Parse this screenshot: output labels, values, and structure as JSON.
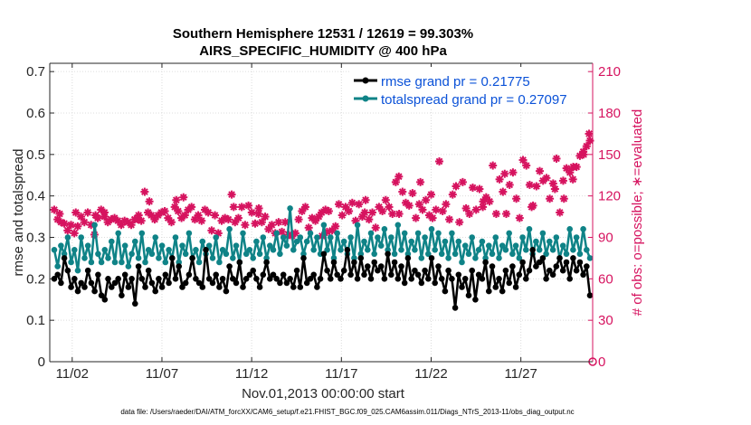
{
  "chart_data": {
    "type": "line",
    "title": "Southern Hemisphere 12531 / 12619 = 99.303%",
    "subtitle": "AIRS_SPECIFIC_HUMIDITY @ 400 hPa",
    "xlabel": "Nov.01,2013 00:00:00 start",
    "ylabel": "rmse and totalspread",
    "y2label": "# of obs: o=possible; ∗=evaluated",
    "footer": "data file: /Users/raeder/DAI/ATM_forcXX/CAM6_setup/f.e21.FHIST_BGC.f09_025.CAM6assim.011/Diags_NTrS_2013-11/obs_diag_output.nc",
    "xlim": [
      0.75,
      31.0
    ],
    "ylim": [
      0,
      0.72
    ],
    "y2lim": [
      0,
      216
    ],
    "xticks": [
      2,
      7,
      12,
      17,
      22,
      27
    ],
    "xticklabels": [
      "11/02",
      "11/07",
      "11/12",
      "11/17",
      "11/22",
      "11/27"
    ],
    "yticks": [
      0,
      0.1,
      0.2,
      0.3,
      0.4,
      0.5,
      0.6,
      0.7
    ],
    "yticklabels": [
      "0",
      "0.1",
      "0.2",
      "0.3",
      "0.4",
      "0.5",
      "0.6",
      "0.7"
    ],
    "y2ticks": [
      0,
      30,
      60,
      90,
      120,
      150,
      180,
      210
    ],
    "y2ticklabels": [
      "0",
      "30",
      "60",
      "90",
      "120",
      "150",
      "180",
      "210"
    ],
    "legend_position": "top-right",
    "colors": {
      "rmse": "#000000",
      "spread": "#0f8387",
      "obs": "#d6135f",
      "legend_text": "#0b52d8"
    },
    "series": [
      {
        "name": "rmse grand pr = 0.21775",
        "color": "#000000",
        "values": [
          0.2,
          0.21,
          0.19,
          0.25,
          0.22,
          0.18,
          0.2,
          0.17,
          0.19,
          0.18,
          0.22,
          0.19,
          0.17,
          0.21,
          0.16,
          0.15,
          0.2,
          0.18,
          0.19,
          0.2,
          0.16,
          0.21,
          0.18,
          0.2,
          0.14,
          0.23,
          0.2,
          0.18,
          0.22,
          0.19,
          0.17,
          0.2,
          0.18,
          0.21,
          0.19,
          0.25,
          0.2,
          0.23,
          0.18,
          0.19,
          0.21,
          0.25,
          0.2,
          0.19,
          0.18,
          0.27,
          0.2,
          0.19,
          0.21,
          0.18,
          0.2,
          0.17,
          0.23,
          0.2,
          0.19,
          0.24,
          0.18,
          0.2,
          0.21,
          0.22,
          0.2,
          0.18,
          0.21,
          0.24,
          0.2,
          0.21,
          0.2,
          0.19,
          0.21,
          0.19,
          0.2,
          0.18,
          0.22,
          0.18,
          0.25,
          0.19,
          0.2,
          0.21,
          0.18,
          0.2,
          0.26,
          0.22,
          0.2,
          0.24,
          0.21,
          0.2,
          0.22,
          0.27,
          0.21,
          0.24,
          0.2,
          0.25,
          0.21,
          0.23,
          0.2,
          0.24,
          0.22,
          0.23,
          0.2,
          0.26,
          0.21,
          0.24,
          0.2,
          0.23,
          0.19,
          0.25,
          0.2,
          0.22,
          0.21,
          0.19,
          0.22,
          0.2,
          0.25,
          0.19,
          0.23,
          0.2,
          0.17,
          0.22,
          0.2,
          0.13,
          0.21,
          0.18,
          0.2,
          0.16,
          0.22,
          0.15,
          0.21,
          0.2,
          0.24,
          0.17,
          0.23,
          0.18,
          0.2,
          0.17,
          0.22,
          0.19,
          0.23,
          0.18,
          0.21,
          0.24,
          0.2,
          0.22,
          0.27,
          0.23,
          0.24,
          0.25,
          0.2,
          0.22,
          0.21,
          0.23,
          0.25,
          0.22,
          0.24,
          0.2,
          0.25,
          0.22,
          0.24,
          0.21,
          0.23,
          0.16
        ]
      },
      {
        "name": "totalspread grand pr = 0.27097",
        "color": "#0f8387",
        "values": [
          0.27,
          0.23,
          0.28,
          0.26,
          0.3,
          0.24,
          0.27,
          0.22,
          0.3,
          0.25,
          0.28,
          0.24,
          0.33,
          0.26,
          0.24,
          0.27,
          0.25,
          0.29,
          0.24,
          0.31,
          0.24,
          0.28,
          0.23,
          0.26,
          0.29,
          0.25,
          0.31,
          0.24,
          0.27,
          0.26,
          0.3,
          0.25,
          0.28,
          0.24,
          0.27,
          0.25,
          0.3,
          0.24,
          0.28,
          0.26,
          0.31,
          0.25,
          0.27,
          0.24,
          0.29,
          0.26,
          0.28,
          0.25,
          0.3,
          0.24,
          0.27,
          0.26,
          0.32,
          0.25,
          0.28,
          0.24,
          0.31,
          0.26,
          0.27,
          0.25,
          0.29,
          0.26,
          0.3,
          0.25,
          0.28,
          0.27,
          0.31,
          0.26,
          0.3,
          0.28,
          0.37,
          0.27,
          0.29,
          0.3,
          0.26,
          0.29,
          0.31,
          0.27,
          0.3,
          0.26,
          0.33,
          0.27,
          0.3,
          0.25,
          0.31,
          0.27,
          0.29,
          0.26,
          0.3,
          0.25,
          0.33,
          0.26,
          0.29,
          0.27,
          0.31,
          0.26,
          0.3,
          0.28,
          0.32,
          0.27,
          0.3,
          0.26,
          0.33,
          0.27,
          0.31,
          0.26,
          0.29,
          0.27,
          0.31,
          0.25,
          0.3,
          0.26,
          0.32,
          0.27,
          0.31,
          0.26,
          0.29,
          0.25,
          0.31,
          0.26,
          0.29,
          0.24,
          0.28,
          0.26,
          0.3,
          0.25,
          0.27,
          0.29,
          0.25,
          0.28,
          0.26,
          0.3,
          0.25,
          0.28,
          0.27,
          0.31,
          0.26,
          0.28,
          0.25,
          0.3,
          0.27,
          0.32,
          0.26,
          0.29,
          0.27,
          0.31,
          0.26,
          0.29,
          0.27,
          0.3,
          0.25,
          0.28,
          0.26,
          0.32,
          0.27,
          0.3,
          0.26,
          0.32,
          0.27,
          0.25
        ]
      },
      {
        "name": "obs evaluated",
        "color": "#d6135f",
        "axis": "right",
        "values": [
          110,
          103,
          101,
          100,
          95,
          99,
          93,
          98,
          105,
          101,
          108,
          99,
          92,
          104,
          110,
          108,
          101,
          103,
          104,
          102,
          99,
          102,
          101,
          99,
          103,
          103,
          102,
          123,
          108,
          106,
          103,
          106,
          108,
          109,
          104,
          101,
          112,
          109,
          104,
          106,
          110,
          112,
          103,
          106,
          102,
          110,
          108,
          95,
          106,
          93,
          102,
          104,
          103,
          121,
          101,
          104,
          112,
          99,
          113,
          108,
          100,
          107,
          101,
          105,
          96,
          99,
          93,
          101,
          94,
          101,
          92,
          91,
          93,
          103,
          109,
          112,
          97,
          104,
          102,
          105,
          91,
          110,
          109,
          95,
          98,
          114,
          106,
          112,
          109,
          115,
          102,
          114,
          105,
          117,
          103,
          108,
          97,
          112,
          109,
          117,
          112,
          107,
          130,
          107,
          123,
          115,
          113,
          122,
          104,
          114,
          110,
          117,
          106,
          104,
          110,
          145,
          109,
          114,
          103,
          121,
          127,
          101,
          130,
          111,
          107,
          126,
          110,
          125,
          112,
          119,
          116,
          142,
          107,
          132,
          123,
          107,
          128,
          137,
          118,
          104,
          146,
          142,
          128,
          113,
          127,
          138,
          131,
          133,
          118,
          129,
          147,
          108,
          131,
          140,
          137,
          141,
          141,
          149,
          152,
          156,
          160
        ]
      }
    ],
    "extra_obs": [
      {
        "x": 1.3,
        "y2": 107
      },
      {
        "x": 2.2,
        "y2": 108
      },
      {
        "x": 3.3,
        "y2": 106
      },
      {
        "x": 3.8,
        "y2": 105
      },
      {
        "x": 5.7,
        "y2": 106
      },
      {
        "x": 6.3,
        "y2": 116
      },
      {
        "x": 7.8,
        "y2": 117
      },
      {
        "x": 8.2,
        "y2": 119
      },
      {
        "x": 11.0,
        "y2": 112
      },
      {
        "x": 12.4,
        "y2": 111
      },
      {
        "x": 15.9,
        "y2": 108
      },
      {
        "x": 16.2,
        "y2": 94
      },
      {
        "x": 18.3,
        "y2": 108
      },
      {
        "x": 20.2,
        "y2": 134
      },
      {
        "x": 21.4,
        "y2": 130
      },
      {
        "x": 22.0,
        "y2": 121
      },
      {
        "x": 24.9,
        "y2": 116
      },
      {
        "x": 26.1,
        "y2": 136
      },
      {
        "x": 27.6,
        "y2": 112
      },
      {
        "x": 28.9,
        "y2": 125
      },
      {
        "x": 29.4,
        "y2": 118
      },
      {
        "x": 29.9,
        "y2": 132
      },
      {
        "x": 30.5,
        "y2": 150
      },
      {
        "x": 30.8,
        "y2": 165
      }
    ],
    "possible_marker": {
      "x": 31.0,
      "y2": 0
    }
  }
}
